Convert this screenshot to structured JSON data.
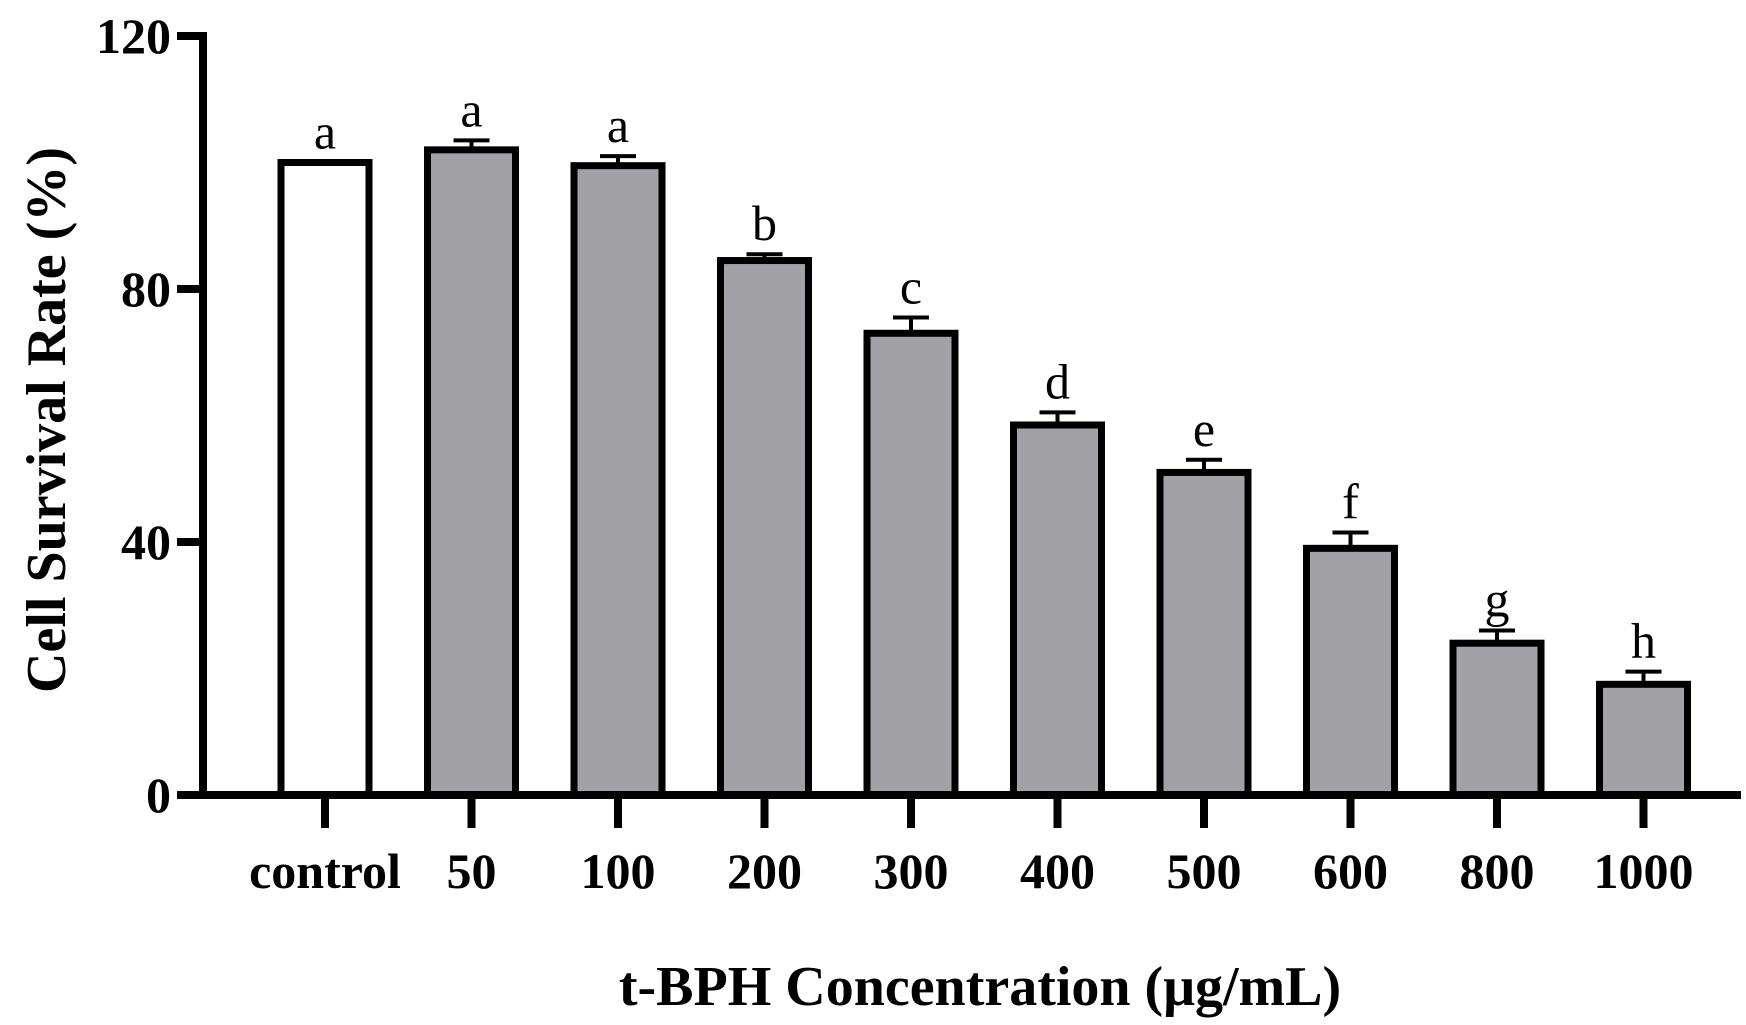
{
  "chart_data": {
    "type": "bar",
    "title": "",
    "xlabel": "t-BPH Concentration (μg/mL)",
    "ylabel": "Cell Survival Rate (%)",
    "ylim": [
      0,
      120
    ],
    "yticks": [
      0,
      40,
      80,
      120
    ],
    "categories": [
      "control",
      "50",
      "100",
      "200",
      "300",
      "400",
      "500",
      "600",
      "800",
      "1000"
    ],
    "values": [
      100,
      102,
      99.5,
      84.5,
      73,
      58.5,
      51,
      39,
      24,
      17.5
    ],
    "errors": [
      0,
      1.5,
      1.5,
      1,
      2.5,
      2,
      2,
      2.5,
      2,
      2
    ],
    "significance": [
      "a",
      "a",
      "a",
      "b",
      "c",
      "d",
      "e",
      "f",
      "g",
      "h"
    ],
    "colors": {
      "control": "#ffffff",
      "treatment": "#a2a1a6",
      "stroke": "#000000"
    },
    "grid": false,
    "legend": "none"
  }
}
